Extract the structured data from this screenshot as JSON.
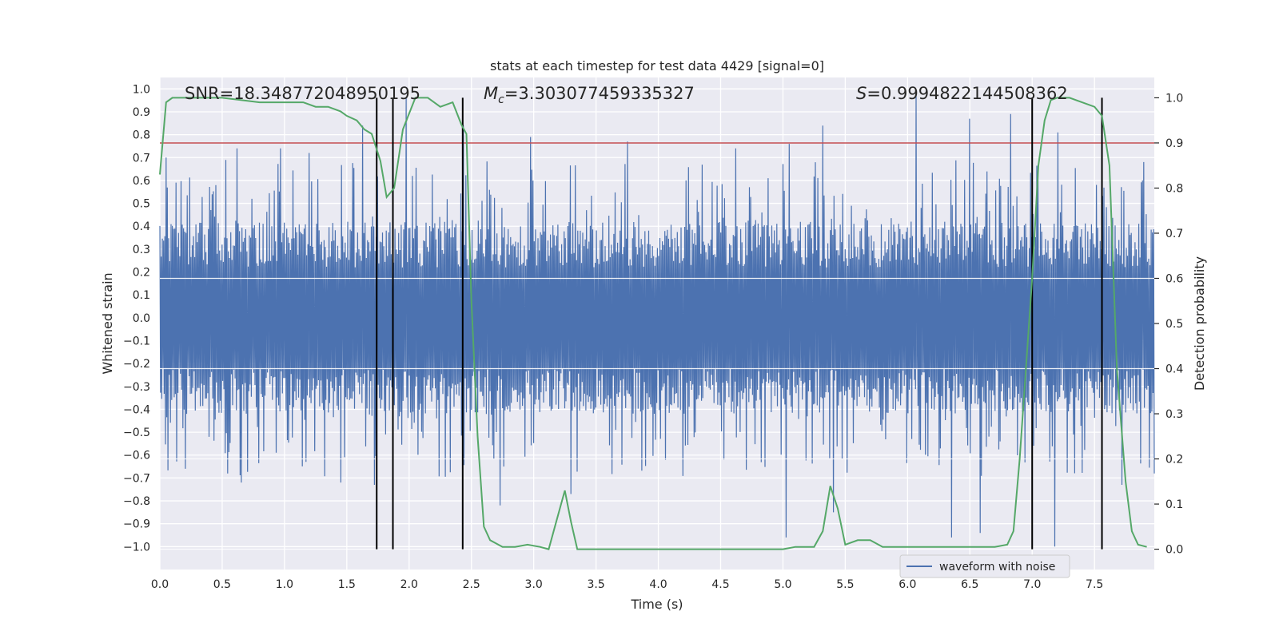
{
  "chart_data": {
    "type": "line",
    "title": "stats at each timestep for test data 4429 [signal=0]",
    "xlabel": "Time (s)",
    "ylabel": "Whitened strain",
    "y2label": "Detection probability",
    "xlim": [
      0.0,
      7.98
    ],
    "ylim": [
      -1.1,
      1.05
    ],
    "y2lim": [
      -0.045,
      1.045
    ],
    "xticks": [
      "0.0",
      "0.5",
      "1.0",
      "1.5",
      "2.0",
      "2.5",
      "3.0",
      "3.5",
      "4.0",
      "4.5",
      "5.0",
      "5.5",
      "6.0",
      "6.5",
      "7.0",
      "7.5"
    ],
    "yticks": [
      "1.0",
      "0.9",
      "0.8",
      "0.7",
      "0.6",
      "0.5",
      "0.4",
      "0.3",
      "0.2",
      "0.1",
      "0.0",
      "-0.1",
      "-0.2",
      "-0.3",
      "-0.4",
      "-0.5",
      "-0.6",
      "-0.7",
      "-0.8",
      "-0.9",
      "-1.0"
    ],
    "y2ticks": [
      "0.0",
      "0.1",
      "0.2",
      "0.3",
      "0.4",
      "0.5",
      "0.6",
      "0.7",
      "0.8",
      "0.9",
      "1.0"
    ],
    "annotations": {
      "snr": "SNR=18.348772048950195",
      "mc_prefix": "M",
      "mc_sub": "c",
      "mc_value": "=3.303077459335327",
      "s_prefix": "S",
      "s_value": "=0.9994822144508362"
    },
    "threshold": 0.9,
    "vertical_lines": [
      1.74,
      1.87,
      2.43,
      7.0,
      7.56
    ],
    "waveform": {
      "name": "waveform with noise",
      "color": "#4c72b0",
      "core_amplitude": 0.4,
      "peaks_pos": [
        {
          "x": 0.05,
          "y": 0.7
        },
        {
          "x": 0.45,
          "y": 0.58
        },
        {
          "x": 0.62,
          "y": 0.74
        },
        {
          "x": 0.97,
          "y": 0.74
        },
        {
          "x": 1.2,
          "y": 0.72
        },
        {
          "x": 1.62,
          "y": 0.84
        },
        {
          "x": 1.97,
          "y": 0.96
        },
        {
          "x": 2.43,
          "y": 0.84
        },
        {
          "x": 2.97,
          "y": 0.79
        },
        {
          "x": 3.75,
          "y": 0.77
        },
        {
          "x": 4.62,
          "y": 0.74
        },
        {
          "x": 5.05,
          "y": 0.76
        },
        {
          "x": 5.32,
          "y": 0.84
        },
        {
          "x": 6.07,
          "y": 0.99
        },
        {
          "x": 6.5,
          "y": 0.87
        },
        {
          "x": 6.82,
          "y": 0.89
        },
        {
          "x": 7.2,
          "y": 0.81
        },
        {
          "x": 7.88,
          "y": 0.6
        }
      ],
      "peaks_neg": [
        {
          "x": 0.2,
          "y": -0.66
        },
        {
          "x": 0.65,
          "y": -0.72
        },
        {
          "x": 1.45,
          "y": -0.72
        },
        {
          "x": 1.72,
          "y": -0.73
        },
        {
          "x": 2.73,
          "y": -0.82
        },
        {
          "x": 3.3,
          "y": -0.77
        },
        {
          "x": 5.02,
          "y": -0.96
        },
        {
          "x": 5.4,
          "y": -0.85
        },
        {
          "x": 6.35,
          "y": -0.96
        },
        {
          "x": 6.58,
          "y": -0.94
        },
        {
          "x": 7.18,
          "y": -1.0
        },
        {
          "x": 7.72,
          "y": -0.73
        }
      ]
    },
    "probability": {
      "name": "detection probability",
      "color": "#55a868",
      "x": [
        0.0,
        0.05,
        0.1,
        0.3,
        0.5,
        0.8,
        1.0,
        1.15,
        1.25,
        1.35,
        1.45,
        1.5,
        1.58,
        1.64,
        1.7,
        1.77,
        1.82,
        1.88,
        1.95,
        2.05,
        2.15,
        2.25,
        2.35,
        2.42,
        2.46,
        2.5,
        2.55,
        2.6,
        2.65,
        2.75,
        2.85,
        2.95,
        3.05,
        3.12,
        3.18,
        3.25,
        3.3,
        3.35,
        3.5,
        4.0,
        4.5,
        5.0,
        5.1,
        5.25,
        5.32,
        5.38,
        5.44,
        5.5,
        5.6,
        5.7,
        5.8,
        5.9,
        6.2,
        6.5,
        6.7,
        6.8,
        6.85,
        6.9,
        7.0,
        7.05,
        7.1,
        7.15,
        7.2,
        7.3,
        7.4,
        7.5,
        7.56,
        7.62,
        7.68,
        7.75,
        7.8,
        7.85,
        7.92
      ],
      "y": [
        0.83,
        0.99,
        1.0,
        1.0,
        1.0,
        0.99,
        0.99,
        0.99,
        0.98,
        0.98,
        0.97,
        0.96,
        0.95,
        0.93,
        0.92,
        0.86,
        0.78,
        0.8,
        0.93,
        1.0,
        1.0,
        0.98,
        0.99,
        0.94,
        0.92,
        0.55,
        0.25,
        0.05,
        0.02,
        0.005,
        0.005,
        0.01,
        0.005,
        0.0,
        0.06,
        0.13,
        0.06,
        0.0,
        0.0,
        0.0,
        0.0,
        0.0,
        0.005,
        0.005,
        0.04,
        0.14,
        0.09,
        0.01,
        0.02,
        0.02,
        0.005,
        0.005,
        0.005,
        0.005,
        0.005,
        0.01,
        0.04,
        0.2,
        0.6,
        0.85,
        0.95,
        0.995,
        1.0,
        1.0,
        0.99,
        0.98,
        0.96,
        0.85,
        0.4,
        0.15,
        0.04,
        0.01,
        0.005
      ]
    },
    "legend": {
      "label": "waveform with noise",
      "location": "lower right"
    },
    "colors": {
      "background": "#eaeaf2",
      "grid": "#ffffff",
      "threshold": "#c44e52",
      "vline": "#000000",
      "waveform": "#4c72b0",
      "probability": "#55a868"
    }
  }
}
